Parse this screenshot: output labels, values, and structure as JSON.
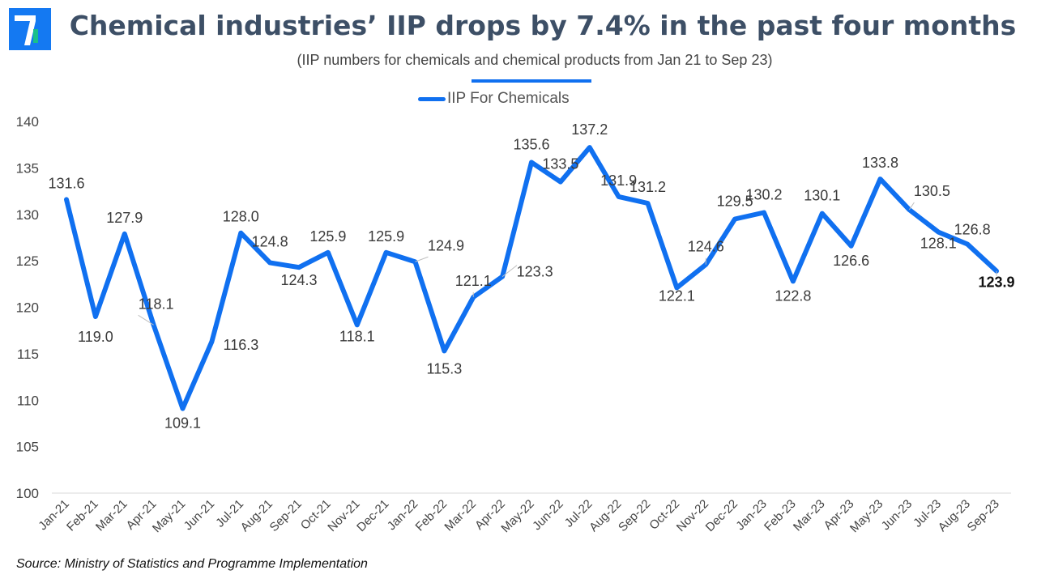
{
  "header": {
    "title": "Chemical industries’ IIP drops by 7.4% in the past four months",
    "subtitle": "(IIP numbers for chemicals and chemical products from Jan 21 to Sep 23)"
  },
  "logo": {
    "icon": "brand-logo-icon",
    "color": "#1479f2"
  },
  "legend": {
    "label": "IIP For Chemicals"
  },
  "source": "Source: Ministry of Statistics and Programme Implementation",
  "chart_data": {
    "type": "line",
    "title": "Chemical industries’ IIP drops by 7.4% in the past four months",
    "subtitle": "(IIP numbers for chemicals and chemical products from Jan 21 to Sep 23)",
    "categories": [
      "Jan-21",
      "Feb-21",
      "Mar-21",
      "Apr-21",
      "May-21",
      "Jun-21",
      "Jul-21",
      "Aug-21",
      "Sep-21",
      "Oct-21",
      "Nov-21",
      "Dec-21",
      "Jan-22",
      "Feb-22",
      "Mar-22",
      "Apr-22",
      "May-22",
      "Jun-22",
      "Jul-22",
      "Aug-22",
      "Sep-22",
      "Oct-22",
      "Nov-22",
      "Dec-22",
      "Jan-23",
      "Feb-23",
      "Mar-23",
      "Apr-23",
      "May-23",
      "Jun-23",
      "Jul-23",
      "Aug-23",
      "Sep-23"
    ],
    "series": [
      {
        "name": "IIP For Chemicals",
        "values": [
          131.6,
          119.0,
          127.9,
          118.1,
          109.1,
          116.3,
          128.0,
          124.8,
          124.3,
          125.9,
          118.1,
          125.9,
          124.9,
          115.3,
          121.1,
          123.3,
          135.6,
          133.5,
          137.2,
          131.9,
          131.2,
          122.1,
          124.6,
          129.5,
          130.2,
          122.8,
          130.1,
          126.6,
          133.8,
          130.5,
          128.1,
          126.8,
          123.9
        ]
      }
    ],
    "data_labels": [
      "131.6",
      "119.0",
      "127.9",
      "118.1",
      "109.1",
      "116.3",
      "128.0",
      "124.8",
      "124.3",
      "125.9",
      "118.1",
      "125.9",
      "124.9",
      "115.3",
      "121.1",
      "123.3",
      "135.6",
      "133.5",
      "137.2",
      "131.9",
      "131.2",
      "122.1",
      "124.6",
      "129.5",
      "130.2",
      "122.8",
      "130.1",
      "126.6",
      "133.8",
      "130.5",
      "128.1",
      "126.8",
      "123.9"
    ],
    "yticks": [
      "100",
      "105",
      "110",
      "115",
      "120",
      "125",
      "130",
      "135",
      "140"
    ],
    "ylim": [
      100,
      140
    ],
    "grid": false,
    "legend_position": "top-center",
    "color": "#1070f0"
  }
}
